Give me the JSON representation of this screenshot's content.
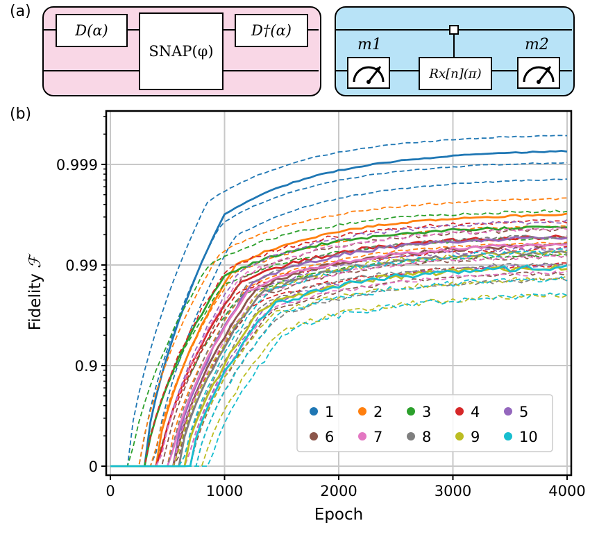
{
  "panel_a": {
    "label": "(a)",
    "left_circuit": {
      "gate1": "D(α)",
      "gate2": "SNAP(φ)",
      "gate3": "D†(α)"
    },
    "right_circuit": {
      "meter1": "m1",
      "gate": "Rx[n](π)",
      "meter2": "m2"
    },
    "colors": {
      "left_bg": "#f9d7e6",
      "right_bg": "#b8e3f7"
    }
  },
  "panel_b": {
    "label": "(b)"
  },
  "chart_data": {
    "type": "line",
    "xlabel": "Epoch",
    "ylabel": "Fidelity",
    "ylabel_symbol": "ℱ",
    "xlim": [
      0,
      4000
    ],
    "x_ticks": [
      "0",
      "1000",
      "2000",
      "3000",
      "4000"
    ],
    "y_ticks": [
      "0",
      "0.9",
      "0.99",
      "0.999"
    ],
    "y_scale": "log(1 - F)",
    "grid": true,
    "legend_placement": "lower-right",
    "legend_columns": 5,
    "series": [
      {
        "name": "1",
        "color": "#1f77b4",
        "rise_epoch": 550,
        "plateau": 0.9993,
        "noise": 0.0006
      },
      {
        "name": "2",
        "color": "#ff7f0e",
        "rise_epoch": 650,
        "plateau": 0.997,
        "noise": 0.001
      },
      {
        "name": "3",
        "color": "#2ca02c",
        "rise_epoch": 560,
        "plateau": 0.996,
        "noise": 0.0015
      },
      {
        "name": "4",
        "color": "#d62728",
        "rise_epoch": 680,
        "plateau": 0.995,
        "noise": 0.002
      },
      {
        "name": "5",
        "color": "#9467bd",
        "rise_epoch": 800,
        "plateau": 0.995,
        "noise": 0.002
      },
      {
        "name": "6",
        "color": "#8c564b",
        "rise_epoch": 820,
        "plateau": 0.994,
        "noise": 0.002
      },
      {
        "name": "7",
        "color": "#e377c2",
        "rise_epoch": 780,
        "plateau": 0.994,
        "noise": 0.002
      },
      {
        "name": "8",
        "color": "#7f7f7f",
        "rise_epoch": 850,
        "plateau": 0.993,
        "noise": 0.002
      },
      {
        "name": "9",
        "color": "#bcbd22",
        "rise_epoch": 900,
        "plateau": 0.99,
        "noise": 0.003
      },
      {
        "name": "10",
        "color": "#17becf",
        "rise_epoch": 950,
        "plateau": 0.99,
        "noise": 0.003
      }
    ],
    "dashed_runs_per_series": 3
  }
}
